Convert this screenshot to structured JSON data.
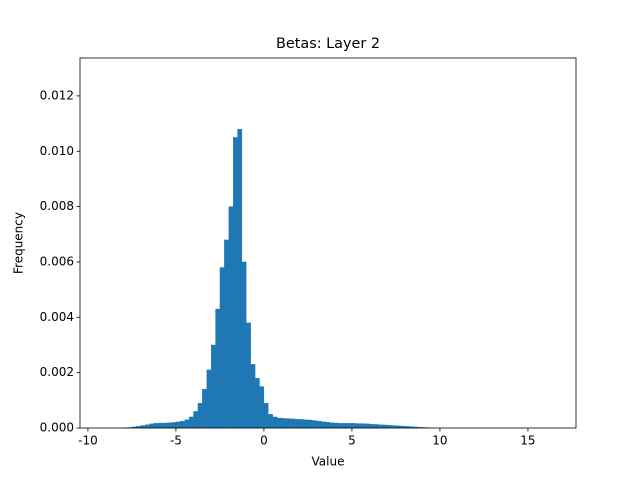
{
  "chart_data": {
    "type": "histogram",
    "title": "Betas: Layer 2",
    "x_label": "Value",
    "y_label": "Frequency",
    "color": "#1f77b4",
    "bins": [
      -8,
      -7.75,
      -7.5,
      -7.25,
      -7,
      -6.75,
      -6.5,
      -6.25,
      -6,
      -5.75,
      -5.5,
      -5.25,
      -5,
      -4.75,
      -4.5,
      -4.25,
      -4,
      -3.75,
      -3.5,
      -3.25,
      -3,
      -2.75,
      -2.5,
      -2.25,
      -2,
      -1.75,
      -1.5,
      -1.25,
      -1,
      -0.75,
      -0.5,
      -0.25,
      0,
      0.25,
      0.5,
      0.75,
      1,
      1.25,
      1.5,
      1.75,
      2,
      2.25,
      2.5,
      2.75,
      3,
      3.25,
      3.5,
      3.75,
      4,
      4.25,
      4.5,
      4.75,
      5,
      5.25,
      5.5,
      5.75,
      6,
      6.25,
      6.5,
      6.75,
      7,
      7.25,
      7.5,
      7.75,
      8,
      8.25,
      8.5,
      8.75,
      9,
      9.25,
      9.5
    ],
    "values": [
      1e-05,
      2e-05,
      4e-05,
      6e-05,
      9e-05,
      0.00012,
      0.00015,
      0.00017,
      0.00018,
      0.00018,
      0.00019,
      0.0002,
      0.00022,
      0.00025,
      0.0003,
      0.0004,
      0.0006,
      0.0009,
      0.0014,
      0.0021,
      0.003,
      0.0043,
      0.0058,
      0.0068,
      0.008,
      0.0105,
      0.0108,
      0.006,
      0.0038,
      0.0023,
      0.0018,
      0.0015,
      0.0009,
      0.0005,
      0.0004,
      0.00036,
      0.00035,
      0.00034,
      0.00033,
      0.00032,
      0.00031,
      0.0003,
      0.00029,
      0.00027,
      0.00025,
      0.00023,
      0.00021,
      0.00019,
      0.00018,
      0.00017,
      0.00017,
      0.00017,
      0.00017,
      0.00016,
      0.00016,
      0.00015,
      0.00014,
      0.00013,
      0.00012,
      0.00011,
      0.0001,
      9e-05,
      8e-05,
      7e-05,
      6e-05,
      5e-05,
      4e-05,
      3e-05,
      2e-05,
      1e-05
    ],
    "xlim": [
      -10.45,
      17.73
    ],
    "ylim": [
      0,
      0.01337
    ],
    "xticks": [
      -10,
      -5,
      0,
      5,
      10,
      15
    ],
    "yticks": [
      {
        "value": 0,
        "label": "0.000"
      },
      {
        "value": 0.002,
        "label": "0.002"
      },
      {
        "value": 0.004,
        "label": "0.004"
      },
      {
        "value": 0.006,
        "label": "0.006"
      },
      {
        "value": 0.008,
        "label": "0.008"
      },
      {
        "value": 0.01,
        "label": "0.010"
      },
      {
        "value": 0.012,
        "label": "0.012"
      }
    ]
  }
}
